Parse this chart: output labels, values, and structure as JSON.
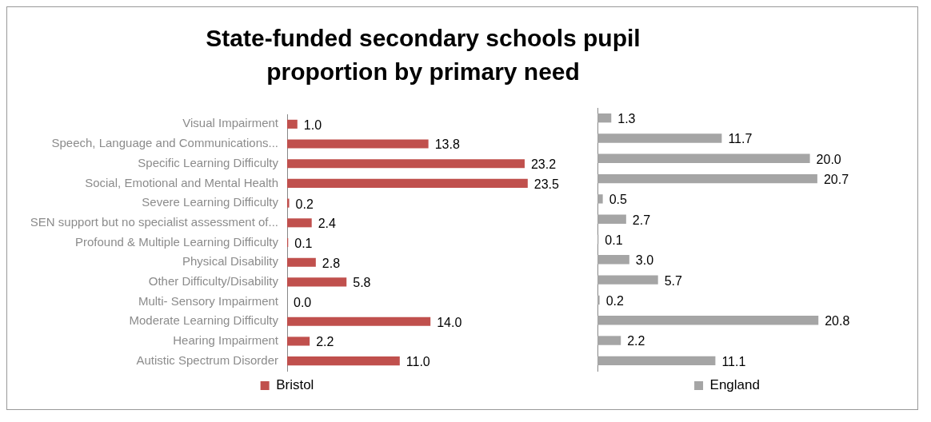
{
  "chart_data": [
    {
      "type": "bar",
      "title": "State-funded secondary schools pupil proportion by primary need",
      "orientation": "horizontal",
      "tick_labels": "y",
      "legend": "bottom",
      "categories": [
        "Visual Impairment",
        "Speech, Language and Communications...",
        "Specific Learning Difficulty",
        "Social, Emotional and Mental Health",
        "Severe Learning Difficulty",
        "SEN support but no specialist assessment of...",
        "Profound & Multiple Learning Difficulty",
        "Physical Disability",
        "Other Difficulty/Disability",
        "Multi- Sensory Impairment",
        "Moderate Learning Difficulty",
        "Hearing Impairment",
        "Autistic Spectrum Disorder"
      ],
      "series": [
        {
          "name": "Bristol",
          "color": "#c0504d",
          "values": [
            1.0,
            13.8,
            23.2,
            23.5,
            0.2,
            2.4,
            0.1,
            2.8,
            5.8,
            0.0,
            14.0,
            2.2,
            11.0
          ],
          "value_labels": [
            "1.0",
            "13.8",
            "23.2",
            "23.5",
            "0.2",
            "2.4",
            "0.1",
            "2.8",
            "5.8",
            "0.0",
            "14.0",
            "2.2",
            "11.0"
          ]
        }
      ]
    },
    {
      "type": "bar",
      "orientation": "horizontal",
      "tick_labels": false,
      "legend": "bottom",
      "categories": [
        null,
        null,
        null,
        null,
        null,
        null,
        null,
        null,
        null,
        null,
        null,
        null,
        null
      ],
      "series": [
        {
          "name": "England",
          "color": "#a5a5a5",
          "values": [
            1.3,
            11.7,
            20.0,
            20.7,
            0.5,
            2.7,
            0.1,
            3.0,
            5.7,
            0.2,
            20.8,
            2.2,
            11.1
          ],
          "value_labels": [
            "1.3",
            "11.7",
            "20.0",
            "20.7",
            "0.5",
            "2.7",
            "0.1",
            "3.0",
            "5.7",
            "0.2",
            "20.8",
            "2.2",
            "11.1"
          ]
        }
      ]
    }
  ]
}
